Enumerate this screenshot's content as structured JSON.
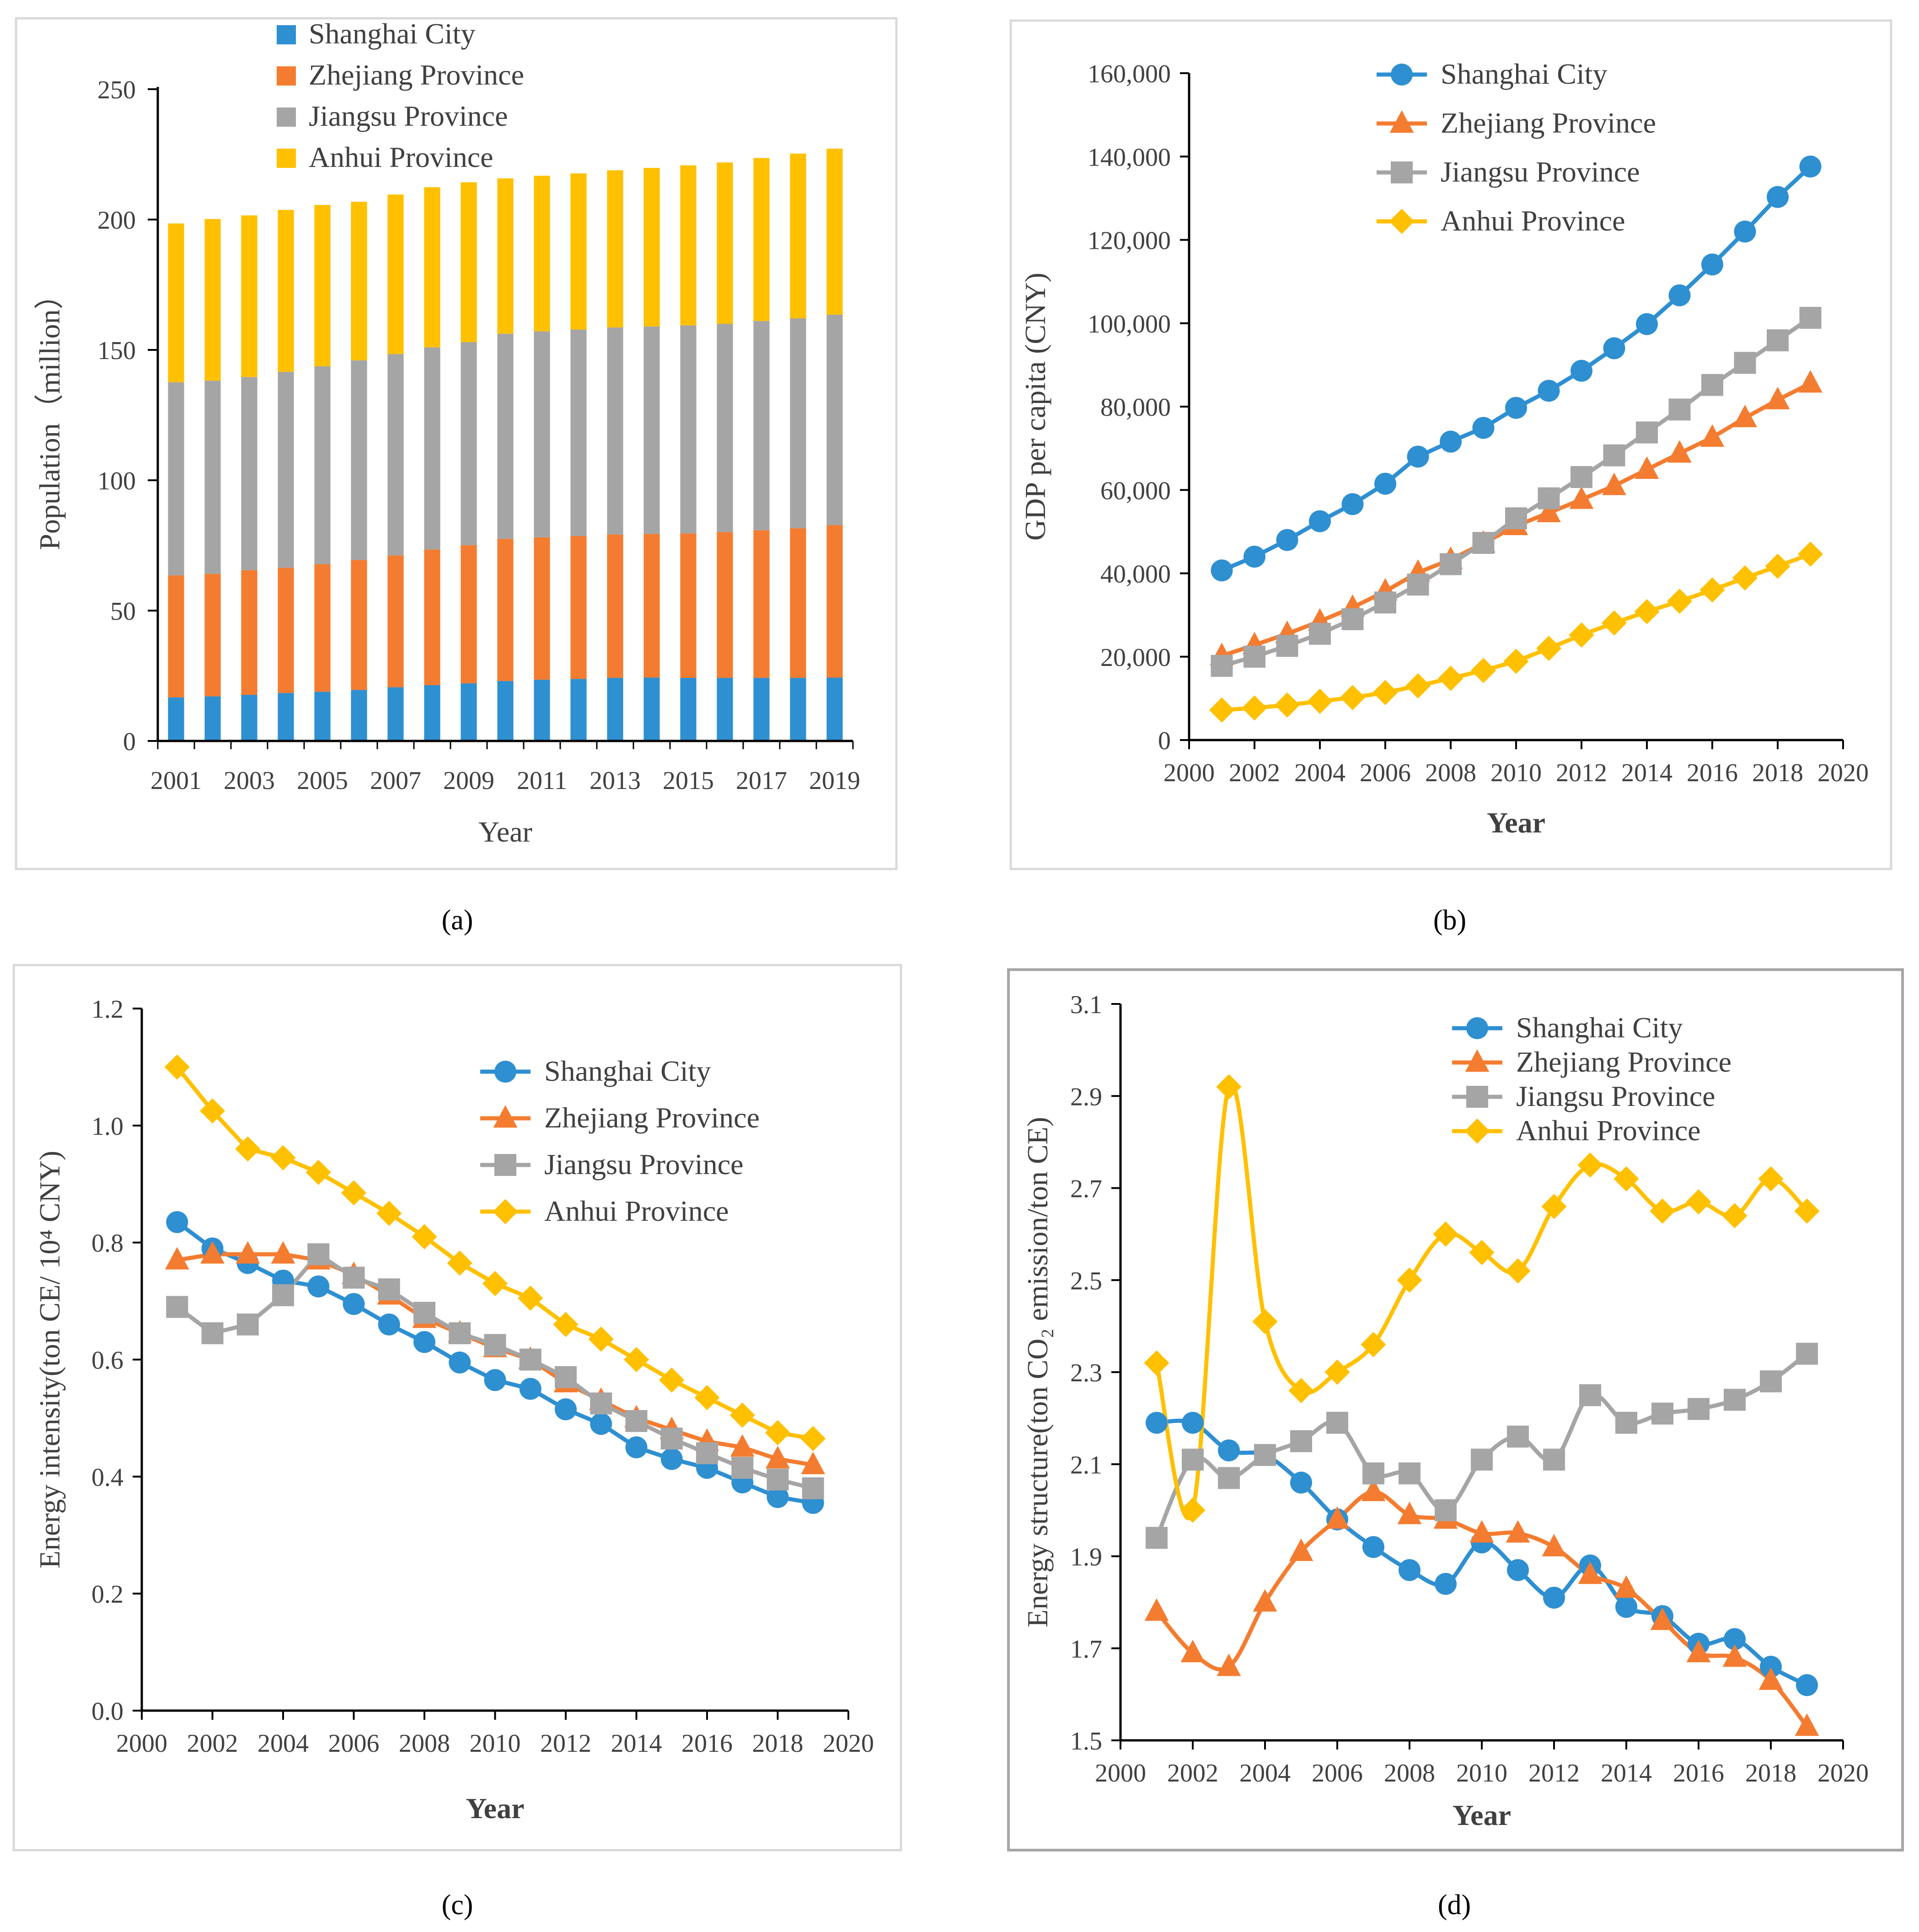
{
  "colors": {
    "shanghai": "#2e8fd1",
    "zhejiang": "#f47c30",
    "jiangsu": "#a5a5a5",
    "anhui": "#ffc000",
    "axis": "#000000",
    "frame": "#d9d9d9"
  },
  "legend": [
    "Shanghai City",
    "Zhejiang Province",
    "Jiangsu Province",
    "Anhui Province"
  ],
  "captions": {
    "a": "(a)",
    "b": "(b)",
    "c": "(c)",
    "d": "(d)"
  },
  "chart_data": [
    {
      "id": "a",
      "type": "bar",
      "stacked": true,
      "ylabel": "Population（million）",
      "xlabel": "Year",
      "ylim": [
        0,
        250
      ],
      "yticks": [
        0,
        50,
        100,
        150,
        200,
        250
      ],
      "categories": [
        2001,
        2002,
        2003,
        2004,
        2005,
        2006,
        2007,
        2008,
        2009,
        2010,
        2011,
        2012,
        2013,
        2014,
        2015,
        2016,
        2017,
        2018,
        2019
      ],
      "xticklabels": [
        "2001",
        "2003",
        "2005",
        "2007",
        "2009",
        "2011",
        "2013",
        "2015",
        "2017",
        "2019"
      ],
      "legend_position": "top",
      "series": [
        {
          "name": "Shanghai City",
          "values": [
            16.7,
            17.1,
            17.7,
            18.4,
            18.9,
            19.6,
            20.6,
            21.4,
            22.1,
            23.0,
            23.5,
            23.8,
            24.2,
            24.3,
            24.2,
            24.2,
            24.2,
            24.2,
            24.3
          ]
        },
        {
          "name": "Zhejiang Province",
          "values": [
            46.8,
            47.0,
            47.8,
            48.0,
            48.9,
            49.8,
            50.6,
            52.0,
            53.0,
            54.5,
            54.6,
            54.8,
            55.0,
            55.1,
            55.4,
            55.9,
            56.6,
            57.4,
            58.5
          ]
        },
        {
          "name": "Jiangsu Province",
          "values": [
            74.1,
            74.1,
            74.1,
            75.2,
            75.9,
            76.6,
            77.2,
            77.6,
            77.9,
            78.7,
            79.0,
            79.2,
            79.4,
            79.6,
            79.8,
            79.9,
            80.3,
            80.5,
            80.7
          ]
        },
        {
          "name": "Anhui Province",
          "values": [
            60.9,
            62.0,
            62.0,
            62.1,
            61.9,
            60.8,
            61.2,
            61.4,
            61.3,
            59.6,
            59.7,
            59.9,
            60.3,
            60.8,
            61.4,
            61.9,
            62.5,
            63.2,
            63.7
          ]
        }
      ]
    },
    {
      "id": "b",
      "type": "line",
      "ylabel": "GDP per capita (CNY)",
      "xlabel": "Year",
      "xlim": [
        2000,
        2020
      ],
      "ylim": [
        0,
        160000
      ],
      "xticks": [
        "2000",
        "2002",
        "2004",
        "2006",
        "2008",
        "2010",
        "2012",
        "2014",
        "2016",
        "2018",
        "2020"
      ],
      "yticks": [
        "0",
        "20,000",
        "40,000",
        "60,000",
        "80,000",
        "100,000",
        "120,000",
        "140,000",
        "160,000"
      ],
      "x": [
        2001,
        2002,
        2003,
        2004,
        2005,
        2006,
        2007,
        2008,
        2009,
        2010,
        2011,
        2012,
        2013,
        2014,
        2015,
        2016,
        2017,
        2018,
        2019
      ],
      "legend_position": "top-center",
      "series": [
        {
          "name": "Shanghai City",
          "marker": "circle",
          "values": [
            40700,
            44000,
            48000,
            52500,
            56600,
            61500,
            68000,
            71600,
            74900,
            79700,
            83800,
            88600,
            94000,
            99800,
            106700,
            114100,
            122000,
            130300,
            137600
          ]
        },
        {
          "name": "Zhejiang Province",
          "marker": "triangle",
          "values": [
            20200,
            22800,
            25500,
            28500,
            31800,
            35700,
            40200,
            43300,
            47200,
            51400,
            54500,
            57700,
            61000,
            64900,
            68800,
            72600,
            77300,
            81600,
            85600
          ]
        },
        {
          "name": "Jiangsu Province",
          "marker": "square",
          "values": [
            17800,
            20000,
            22600,
            25500,
            29000,
            33000,
            37300,
            42200,
            47300,
            53200,
            58000,
            63100,
            68300,
            73800,
            79300,
            85200,
            90500,
            95900,
            101300
          ]
        },
        {
          "name": "Anhui Province",
          "marker": "diamond",
          "values": [
            7200,
            7700,
            8400,
            9300,
            10200,
            11400,
            13000,
            14800,
            16700,
            18900,
            22000,
            25200,
            28100,
            30800,
            33300,
            36000,
            38900,
            41700,
            44600
          ]
        }
      ]
    },
    {
      "id": "c",
      "type": "line",
      "ylabel": "Energy intensity(ton CE/ 10⁴ CNY)",
      "xlabel": "Year",
      "xlim": [
        2000,
        2020
      ],
      "ylim": [
        0,
        1.2
      ],
      "xticks": [
        "2000",
        "2002",
        "2004",
        "2006",
        "2008",
        "2010",
        "2012",
        "2014",
        "2016",
        "2018",
        "2020"
      ],
      "yticks": [
        "0.0",
        "0.2",
        "0.4",
        "0.6",
        "0.8",
        "1.0",
        "1.2"
      ],
      "x": [
        2001,
        2002,
        2003,
        2004,
        2005,
        2006,
        2007,
        2008,
        2009,
        2010,
        2011,
        2012,
        2013,
        2014,
        2015,
        2016,
        2017,
        2018,
        2019
      ],
      "legend_position": "top-right",
      "series": [
        {
          "name": "Shanghai City",
          "marker": "circle",
          "values": [
            0.835,
            0.79,
            0.765,
            0.735,
            0.725,
            0.695,
            0.66,
            0.63,
            0.595,
            0.565,
            0.55,
            0.515,
            0.49,
            0.45,
            0.43,
            0.415,
            0.39,
            0.365,
            0.355
          ]
        },
        {
          "name": "Zhejiang Province",
          "marker": "triangle",
          "values": [
            0.77,
            0.78,
            0.78,
            0.78,
            0.77,
            0.745,
            0.71,
            0.67,
            0.645,
            0.62,
            0.6,
            0.56,
            0.53,
            0.5,
            0.48,
            0.46,
            0.45,
            0.43,
            0.42
          ]
        },
        {
          "name": "Jiangsu Province",
          "marker": "square",
          "values": [
            0.69,
            0.645,
            0.66,
            0.71,
            0.78,
            0.74,
            0.72,
            0.68,
            0.645,
            0.625,
            0.6,
            0.57,
            0.525,
            0.495,
            0.465,
            0.44,
            0.415,
            0.395,
            0.38
          ]
        },
        {
          "name": "Anhui Province",
          "marker": "diamond",
          "values": [
            1.1,
            1.025,
            0.96,
            0.945,
            0.92,
            0.885,
            0.85,
            0.81,
            0.765,
            0.73,
            0.705,
            0.66,
            0.635,
            0.6,
            0.565,
            0.535,
            0.505,
            0.475,
            0.465
          ]
        }
      ]
    },
    {
      "id": "d",
      "type": "line",
      "smooth": true,
      "ylabel": "Energy structure(ton CO₂ emission/ton CE)",
      "xlabel": "Year",
      "xlim": [
        2000,
        2020
      ],
      "ylim": [
        1.5,
        3.1
      ],
      "xticks": [
        "2000",
        "2002",
        "2004",
        "2006",
        "2008",
        "2010",
        "2012",
        "2014",
        "2016",
        "2018",
        "2020"
      ],
      "yticks": [
        "1.5",
        "1.7",
        "1.9",
        "2.1",
        "2.3",
        "2.5",
        "2.7",
        "2.9",
        "3.1"
      ],
      "x": [
        2001,
        2002,
        2003,
        2004,
        2005,
        2006,
        2007,
        2008,
        2009,
        2010,
        2011,
        2012,
        2013,
        2014,
        2015,
        2016,
        2017,
        2018,
        2019
      ],
      "legend_position": "top-right",
      "series": [
        {
          "name": "Shanghai City",
          "marker": "circle",
          "values": [
            2.19,
            2.19,
            2.13,
            2.12,
            2.06,
            1.98,
            1.92,
            1.87,
            1.84,
            1.93,
            1.87,
            1.81,
            1.88,
            1.79,
            1.77,
            1.71,
            1.72,
            1.66,
            1.62
          ]
        },
        {
          "name": "Zhejiang Province",
          "marker": "triangle",
          "values": [
            1.78,
            1.69,
            1.66,
            1.8,
            1.91,
            1.98,
            2.04,
            1.99,
            1.98,
            1.95,
            1.95,
            1.92,
            1.86,
            1.83,
            1.76,
            1.69,
            1.68,
            1.63,
            1.53
          ]
        },
        {
          "name": "Jiangsu Province",
          "marker": "square",
          "values": [
            1.94,
            2.11,
            2.07,
            2.12,
            2.15,
            2.19,
            2.08,
            2.08,
            2.0,
            2.11,
            2.16,
            2.11,
            2.25,
            2.19,
            2.21,
            2.22,
            2.24,
            2.28,
            2.34
          ]
        },
        {
          "name": "Anhui Province",
          "marker": "diamond",
          "values": [
            2.32,
            2.0,
            2.92,
            2.41,
            2.26,
            2.3,
            2.36,
            2.5,
            2.6,
            2.56,
            2.52,
            2.66,
            2.75,
            2.72,
            2.65,
            2.67,
            2.64,
            2.72,
            2.65
          ]
        }
      ]
    }
  ]
}
